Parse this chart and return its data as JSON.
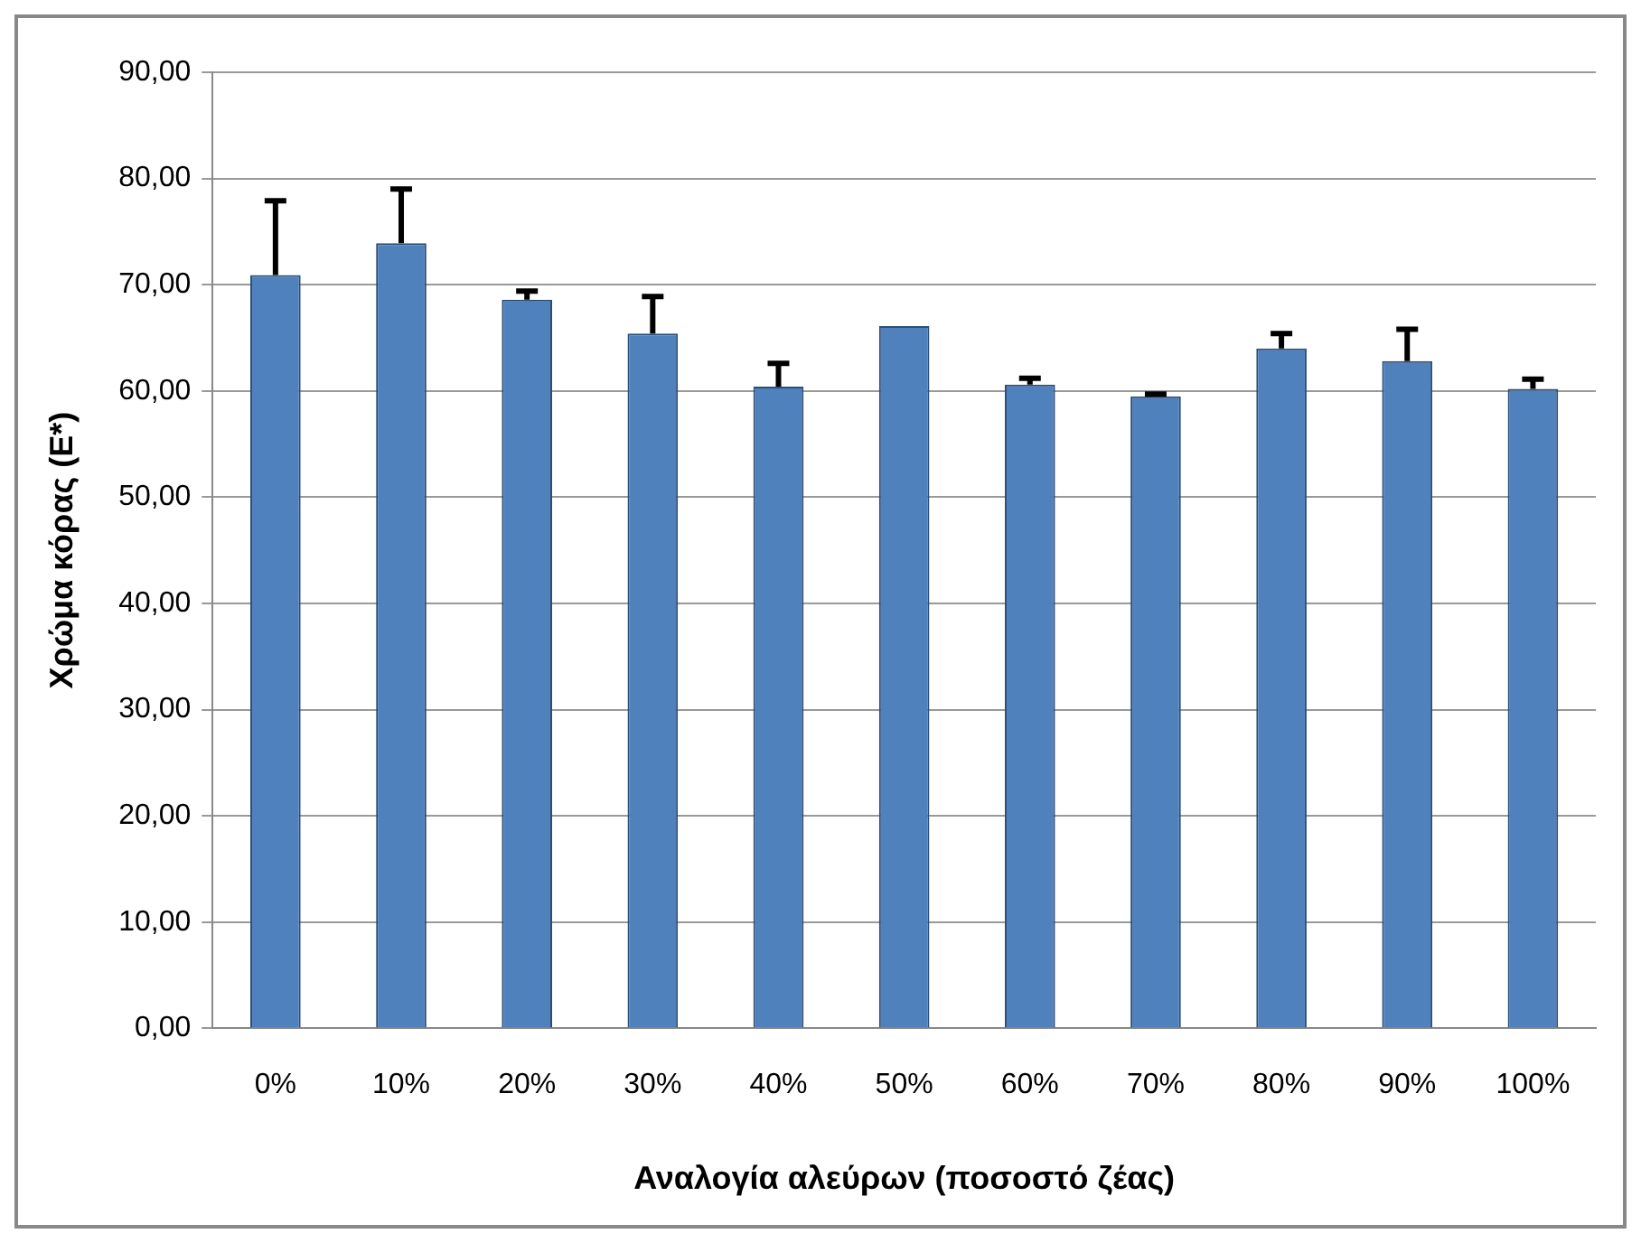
{
  "chart_data": {
    "type": "bar",
    "xlabel": "Αναλογία αλεύρων (ποσοστό ζέας)",
    "ylabel": "Χρώμα κόρας (E*)",
    "categories": [
      "0%",
      "10%",
      "20%",
      "30%",
      "40%",
      "50%",
      "60%",
      "70%",
      "80%",
      "90%",
      "100%"
    ],
    "values": [
      70.9,
      73.9,
      68.6,
      65.4,
      60.4,
      66.1,
      60.6,
      59.5,
      64.0,
      62.8,
      60.2
    ],
    "errors": [
      [
        70.9,
        77.9
      ],
      [
        73.9,
        79.0
      ],
      [
        68.6,
        69.4
      ],
      [
        65.4,
        68.9
      ],
      [
        60.4,
        62.6
      ],
      null,
      [
        60.6,
        61.2
      ],
      [
        59.5,
        59.7
      ],
      [
        64.0,
        65.4
      ],
      [
        62.8,
        65.8
      ],
      [
        60.2,
        61.1
      ]
    ],
    "color": "#4f81bd",
    "ylim": [
      0,
      90
    ],
    "yticks": [
      {
        "value": 0,
        "label": "0,00"
      },
      {
        "value": 10,
        "label": "10,00"
      },
      {
        "value": 20,
        "label": "20,00"
      },
      {
        "value": 30,
        "label": "30,00"
      },
      {
        "value": 40,
        "label": "40,00"
      },
      {
        "value": 50,
        "label": "50,00"
      },
      {
        "value": 60,
        "label": "60,00"
      },
      {
        "value": 70,
        "label": "70,00"
      },
      {
        "value": 80,
        "label": "80,00"
      },
      {
        "value": 90,
        "label": "90,00"
      }
    ],
    "grid": "y",
    "legend": false
  }
}
